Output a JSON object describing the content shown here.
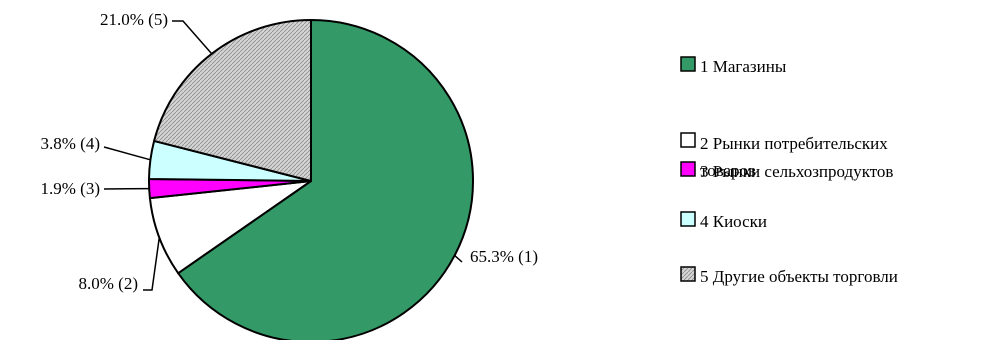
{
  "chart_data": {
    "type": "pie",
    "slices": [
      {
        "id": 1,
        "value": 65.3,
        "label": "65.3% (1)",
        "legend": "1 Магазины",
        "color": "#339966",
        "pattern": "solid"
      },
      {
        "id": 2,
        "value": 8.0,
        "label": "8.0% (2)",
        "legend_lines": [
          "2 Рынки потребительских",
          "товаров"
        ],
        "color": "#ffffff",
        "pattern": "solid"
      },
      {
        "id": 3,
        "value": 1.9,
        "label": "1.9% (3)",
        "legend": "3 Рынки сельхозпродуктов",
        "color": "#ff00ff",
        "pattern": "solid"
      },
      {
        "id": 4,
        "value": 3.8,
        "label": "3.8% (4)",
        "legend": "4 Киоски",
        "color": "#ccffff",
        "pattern": "solid"
      },
      {
        "id": 5,
        "value": 21.0,
        "label": "21.0% (5)",
        "legend": "5 Другие объекты торговли",
        "color": "#c0c0c0",
        "pattern": "hatch"
      }
    ],
    "start_angle": "12 o'clock",
    "direction": "clockwise",
    "legend_position": "right"
  }
}
